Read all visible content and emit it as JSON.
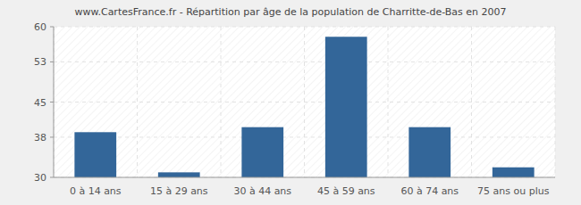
{
  "chart_data": {
    "type": "bar",
    "title": "www.CartesFrance.fr - Répartition par âge de la population de Charritte-de-Bas en 2007",
    "categories": [
      "0 à 14 ans",
      "15 à 29 ans",
      "30 à 44 ans",
      "45 à 59 ans",
      "60 à 74 ans",
      "75 ans ou plus"
    ],
    "values": [
      39,
      31,
      40,
      58,
      40,
      32
    ],
    "color": "#336699",
    "ylim": [
      30,
      60
    ],
    "yticks": [
      30,
      38,
      45,
      53,
      60
    ],
    "grid": true
  }
}
